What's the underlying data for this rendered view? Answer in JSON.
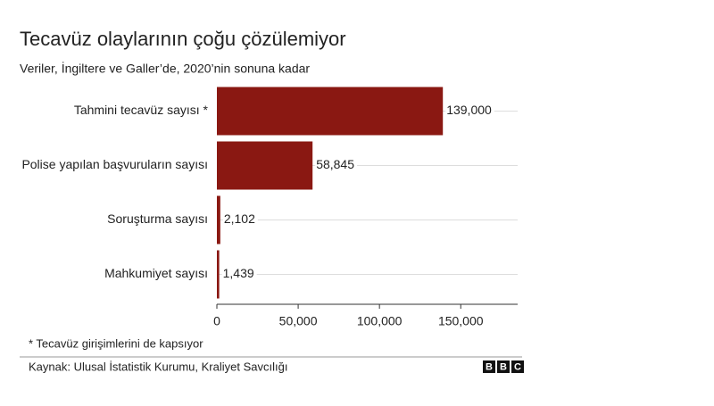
{
  "chart_data": {
    "type": "bar",
    "orientation": "horizontal",
    "title": "Tecavüz olaylarının çoğu çözülemiyor",
    "subtitle": "Veriler, İngiltere ve Galler’de, 2020’nin sonuna kadar",
    "categories": [
      "Tahmini tecavüz sayısı *",
      "Polise yapılan başvuruların sayısı",
      "Soruşturma sayısı",
      "Mahkumiyet sayısı"
    ],
    "values": [
      139000,
      58845,
      2102,
      1439
    ],
    "value_labels": [
      "139,000",
      "58,845",
      "2,102",
      "1,439"
    ],
    "color": "#8a1812",
    "xlim": [
      0,
      185000
    ],
    "xticks": [
      0,
      {
        "value": 50000,
        "label": "50,000"
      },
      {
        "value": 100000,
        "label": "100,000"
      },
      {
        "value": 150000,
        "label": "150,000"
      }
    ],
    "grid": true,
    "footnote": "* Tecavüz girişimlerini de kapsıyor",
    "source": "Kaynak: Ulusal İstatistik Kurumu, Kraliyet Savcılığı",
    "logo": [
      "B",
      "B",
      "C"
    ]
  }
}
